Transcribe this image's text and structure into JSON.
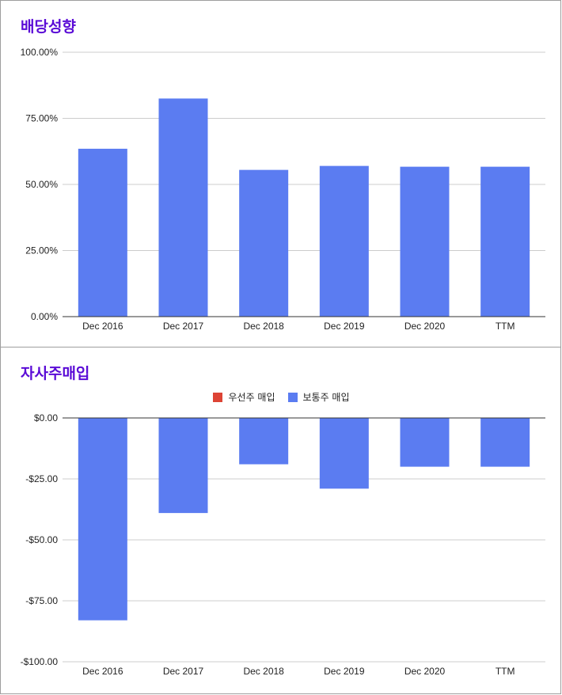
{
  "chart_data": [
    {
      "type": "bar",
      "title": "배당성향",
      "categories": [
        "Dec 2016",
        "Dec 2017",
        "Dec 2018",
        "Dec 2019",
        "Dec 2020",
        "TTM"
      ],
      "series": [
        {
          "values": [
            63.5,
            82.5,
            55.5,
            57.0,
            56.7,
            56.7
          ],
          "color": "#5b7cf1"
        }
      ],
      "yticks": [
        "0.00%",
        "25.00%",
        "50.00%",
        "75.00%",
        "100.00%"
      ],
      "ylim": [
        0,
        100
      ],
      "grid": true,
      "legend": "none"
    },
    {
      "type": "bar",
      "title": "자사주매입",
      "categories": [
        "Dec 2016",
        "Dec 2017",
        "Dec 2018",
        "Dec 2019",
        "Dec 2020",
        "TTM"
      ],
      "legend_items": [
        {
          "name": "우선주 매입",
          "color": "#dd4435"
        },
        {
          "name": "보통주 매입",
          "color": "#5b7cf1"
        }
      ],
      "series": [
        {
          "name": "우선주 매입",
          "values": [
            0,
            0,
            0,
            0,
            0,
            0
          ],
          "color": "#dd4435"
        },
        {
          "name": "보통주 매입",
          "values": [
            -83,
            -39,
            -19,
            -29,
            -20,
            -20
          ],
          "color": "#5b7cf1"
        }
      ],
      "yticks": [
        "$0.00",
        "-$25.00",
        "-$50.00",
        "-$75.00",
        "-$100.00"
      ],
      "ylim": [
        -100,
        0
      ],
      "grid": true,
      "legend": "top"
    }
  ]
}
